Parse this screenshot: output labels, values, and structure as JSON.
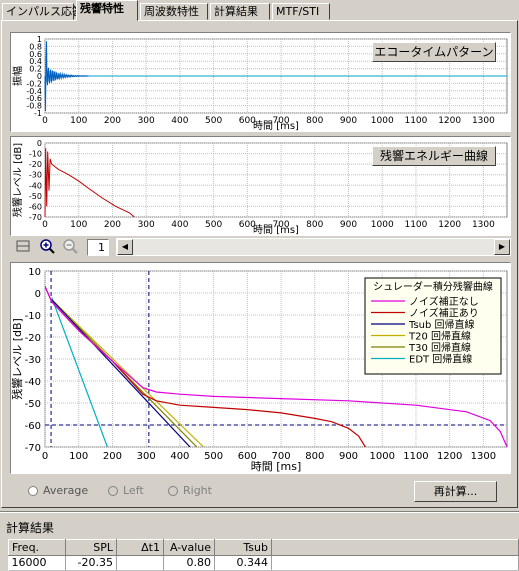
{
  "tabs": [
    {
      "label": "インパルス応答"
    },
    {
      "label": "残響特性"
    },
    {
      "label": "周波数特性"
    },
    {
      "label": "計算結果"
    },
    {
      "label": "MTF/STI"
    }
  ],
  "echo_chart": {
    "button_label": "エコータイムパターン",
    "ylabel": "振幅",
    "xlabel": "時間 [ms]",
    "yticks": [
      "1",
      "0.8",
      "0.6",
      "0.4",
      "0.2",
      "0",
      "-0.2",
      "-0.4",
      "-0.6",
      "-0.8",
      "-1"
    ],
    "xticks": [
      "0",
      "100",
      "200",
      "300",
      "400",
      "500",
      "600",
      "700",
      "800",
      "900",
      "1000",
      "1100",
      "1200",
      "1300"
    ]
  },
  "energy_chart": {
    "button_label": "残響エネルギー曲線",
    "ylabel": "残響レベル [dB]",
    "xlabel": "時間 [ms]",
    "yticks": [
      "0",
      "-10",
      "-20",
      "-30",
      "-40",
      "-50",
      "-60",
      "-70"
    ],
    "xticks": [
      "0",
      "100",
      "200",
      "300",
      "400",
      "500",
      "600",
      "700",
      "800",
      "900",
      "1000",
      "1100",
      "1200",
      "1300"
    ]
  },
  "toolbar": {
    "page_value": "1"
  },
  "chart_data": {
    "type": "line",
    "xlabel": "時間 [ms]",
    "ylabel": "残響レベル [dB]",
    "xlim": [
      0,
      1370
    ],
    "ylim": [
      -70,
      10
    ],
    "yticks": [
      10,
      0,
      -10,
      -20,
      -30,
      -40,
      -50,
      -60,
      -70
    ],
    "xticks": [
      0,
      100,
      200,
      300,
      400,
      500,
      600,
      700,
      800,
      900,
      1000,
      1100,
      1200,
      1300
    ],
    "legend_title": "シュレーダー積分残響曲線",
    "legend_position": "top-right",
    "grid": true,
    "series": [
      {
        "name": "ノイズ補正なし",
        "color": "#e000e0",
        "x": [
          0,
          20,
          100,
          200,
          290,
          330,
          400,
          500,
          700,
          900,
          1100,
          1250,
          1320,
          1350,
          1370
        ],
        "y": [
          3,
          -4,
          -17,
          -31,
          -43,
          -45,
          -46,
          -47,
          -48,
          -49,
          -51,
          -54,
          -58,
          -63,
          -70
        ]
      },
      {
        "name": "ノイズ補正あり",
        "color": "#c00000",
        "x": [
          0,
          20,
          100,
          200,
          290,
          330,
          400,
          500,
          600,
          700,
          800,
          850,
          900,
          930,
          950
        ],
        "y": [
          3,
          -4,
          -17,
          -31,
          -46,
          -49,
          -51,
          -52,
          -53,
          -54.5,
          -57,
          -58.5,
          -61.5,
          -65,
          -70
        ]
      },
      {
        "name": "Tsub 回帰直線",
        "color": "#000080",
        "x": [
          20,
          430
        ],
        "y": [
          -3,
          -70
        ]
      },
      {
        "name": "T20 回帰直線",
        "color": "#c0b000",
        "x": [
          20,
          470
        ],
        "y": [
          -3,
          -70
        ]
      },
      {
        "name": "T30 回帰直線",
        "color": "#808000",
        "x": [
          20,
          450
        ],
        "y": [
          -3,
          -70
        ]
      },
      {
        "name": "EDT 回帰直線",
        "color": "#00b0c0",
        "x": [
          20,
          185
        ],
        "y": [
          -2,
          -70
        ]
      }
    ],
    "reference_lines": {
      "color": "#000080",
      "h": [
        -60
      ],
      "v": [
        18,
        308
      ]
    }
  },
  "radios": {
    "average": "Average",
    "left": "Left",
    "right": "Right"
  },
  "recalc_button": "再計算...",
  "results": {
    "title": "計算結果",
    "headers": [
      "Freq.",
      "SPL",
      "Δt1",
      "A-value",
      "Tsub"
    ],
    "row": [
      "16000",
      "-20.35",
      "",
      "0.80",
      "0.344"
    ]
  }
}
